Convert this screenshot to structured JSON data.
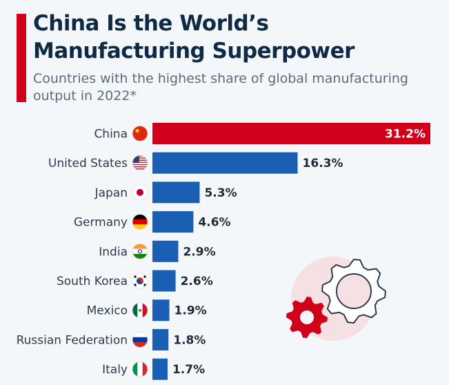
{
  "title_line1": "China Is the World’s",
  "title_line2": "Manufacturing Superpower",
  "subtitle": "Countries with the highest share of global manufacturing output in 2022*",
  "colors": {
    "highlight": "#d0021b",
    "bar": "#1a5fb4",
    "background": "#f3f7fa",
    "title": "#0f2a44"
  },
  "decoration_icon": "gears-icon",
  "chart_data": {
    "type": "bar",
    "orientation": "horizontal",
    "categories": [
      "China",
      "United States",
      "Japan",
      "Germany",
      "India",
      "South Korea",
      "Mexico",
      "Russian Federation",
      "Italy"
    ],
    "values": [
      31.2,
      16.3,
      5.3,
      4.6,
      2.9,
      2.6,
      1.9,
      1.8,
      1.7
    ],
    "labels": [
      "31.2%",
      "16.3%",
      "5.3%",
      "4.6%",
      "2.9%",
      "2.6%",
      "1.9%",
      "1.8%",
      "1.7%"
    ],
    "unit": "%",
    "flags": [
      "flag-china-icon",
      "flag-usa-icon",
      "flag-japan-icon",
      "flag-germany-icon",
      "flag-india-icon",
      "flag-south-korea-icon",
      "flag-mexico-icon",
      "flag-russia-icon",
      "flag-italy-icon"
    ],
    "highlight_index": 0,
    "grid": false
  }
}
